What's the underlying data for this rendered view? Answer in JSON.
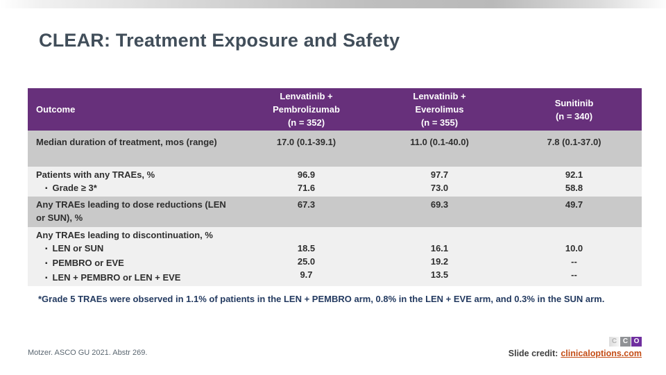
{
  "slide": {
    "title": "CLEAR: Treatment Exposure and Safety",
    "footnote": "*Grade 5 TRAEs were observed in 1.1% of patients in the LEN + PEMBRO arm, 0.8% in the LEN + EVE arm, and 0.3% in the SUN arm.",
    "reference": "Motzer. ASCO GU 2021. Abstr 269.",
    "credit": {
      "label": "Slide credit:",
      "link": "clinicaloptions.com"
    },
    "logo": {
      "letters": [
        "C",
        "C",
        "O"
      ]
    }
  },
  "table": {
    "header": [
      "Outcome",
      "Lenvatinib +\nPembrolizumab\n(n = 352)",
      "Lenvatinib +\nEverolimus\n(n = 355)",
      "Sunitinib\n(n = 340)"
    ],
    "rows": [
      {
        "shade": "dark",
        "label_lines": [
          {
            "text": "Median duration of treatment, mos (range)",
            "bullet": false
          }
        ],
        "values": [
          "17.0 (0.1-39.1)",
          "11.0 (0.1-40.0)",
          "7.8 (0.1-37.0)"
        ]
      },
      {
        "shade": "light",
        "label_lines": [
          {
            "text": "Patients with any TRAEs, %",
            "bullet": false
          },
          {
            "text": "Grade ≥ 3*",
            "bullet": true
          }
        ],
        "values": [
          "96.9\n71.6",
          "97.7\n73.0",
          "92.1\n58.8"
        ]
      },
      {
        "shade": "dark",
        "label_lines": [
          {
            "text": "Any TRAEs leading to dose reductions (LEN or SUN), %",
            "bullet": false
          }
        ],
        "values": [
          "67.3",
          "69.3",
          "49.7"
        ]
      },
      {
        "shade": "light",
        "label_lines": [
          {
            "text": "Any TRAEs leading to discontinuation, %",
            "bullet": false
          },
          {
            "text": "LEN or SUN",
            "bullet": true
          },
          {
            "text": "PEMBRO or EVE",
            "bullet": true
          },
          {
            "text": "LEN + PEMBRO or LEN + EVE",
            "bullet": true
          }
        ],
        "values": [
          "\n18.5\n25.0\n9.7",
          "\n16.1\n19.2\n13.5",
          "\n10.0\n--\n--"
        ]
      }
    ]
  },
  "colors": {
    "header_bg": "#67307B",
    "row_dark": "#C9C9C9",
    "row_light": "#F0F0F0",
    "title_text": "#414E5A",
    "footnote_text": "#233A60",
    "credit_link": "#C44D16",
    "logo_purple": "#6F2F9F"
  }
}
